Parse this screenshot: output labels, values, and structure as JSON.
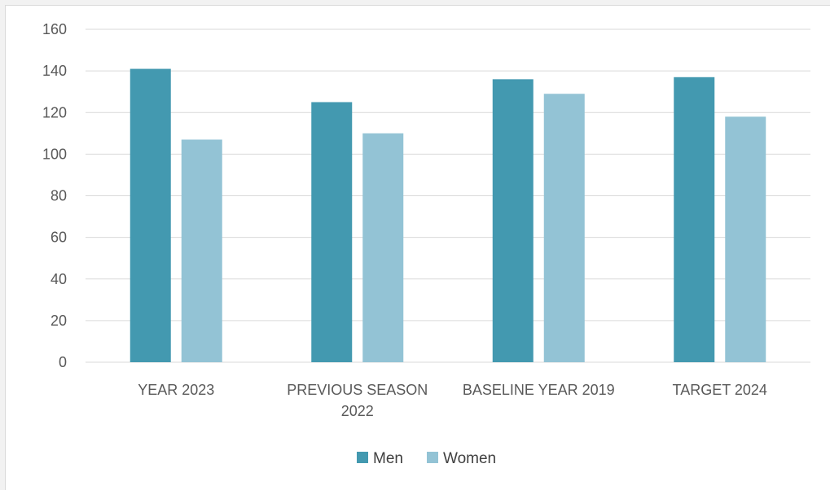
{
  "colors": {
    "men": "#4399b0",
    "women": "#93c3d5",
    "grid": "#d9d9d9",
    "axis_text": "#595959"
  },
  "chart_data": {
    "type": "bar",
    "categories": [
      [
        "YEAR 2023"
      ],
      [
        "PREVIOUS SEASON",
        "2022"
      ],
      [
        "BASELINE YEAR 2019"
      ],
      [
        "TARGET 2024"
      ]
    ],
    "series": [
      {
        "name": "Men",
        "values": [
          141,
          125,
          136,
          137
        ]
      },
      {
        "name": "Women",
        "values": [
          107,
          110,
          129,
          118
        ]
      }
    ],
    "title": "",
    "xlabel": "",
    "ylabel": "",
    "ylim": [
      0,
      160
    ],
    "yticks": [
      "0",
      "20",
      "40",
      "60",
      "80",
      "100",
      "120",
      "140",
      "160"
    ],
    "grid": true,
    "legend_position": "bottom"
  }
}
